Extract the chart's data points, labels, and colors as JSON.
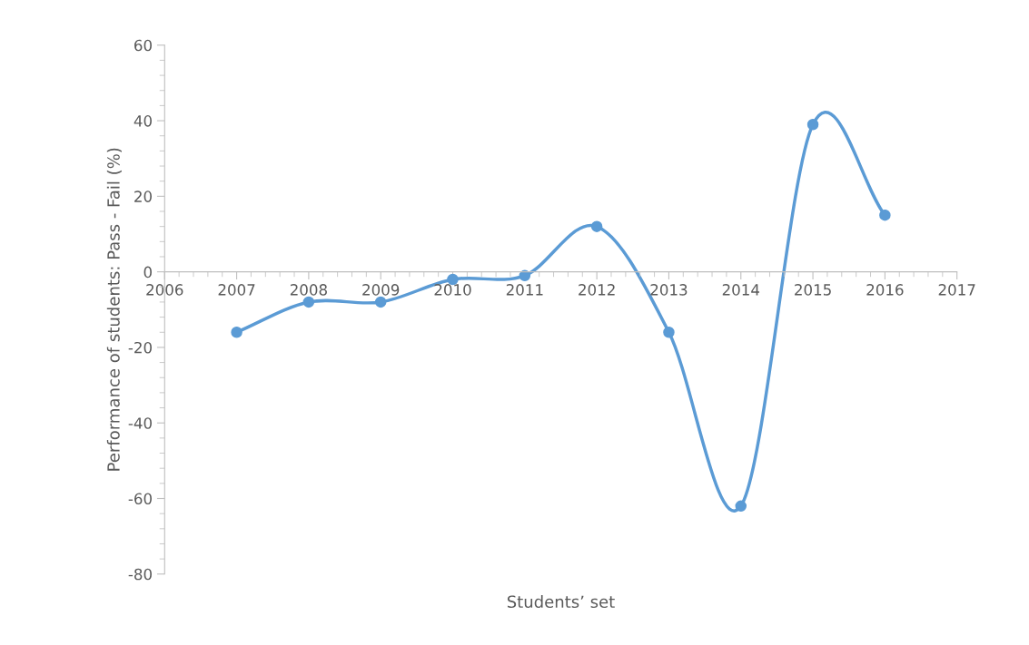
{
  "chart_data": {
    "type": "line",
    "xlabel": "Students’ set",
    "ylabel": "Performance of students: Pass - Fail (%)",
    "x": [
      2007,
      2008,
      2009,
      2010,
      2011,
      2012,
      2013,
      2014,
      2015,
      2016
    ],
    "series": [
      {
        "color": "#5b9bd5",
        "values": [
          -16,
          -8,
          -8,
          -2,
          -1,
          12,
          -16,
          -62,
          39,
          15
        ]
      }
    ],
    "xlim": [
      2006,
      2017
    ],
    "xticks": [
      2006,
      2007,
      2008,
      2009,
      2010,
      2011,
      2012,
      2013,
      2014,
      2015,
      2016,
      2017
    ],
    "ylim": [
      -80,
      60
    ],
    "yticks": [
      -80,
      -60,
      -40,
      -20,
      0,
      20,
      40,
      60
    ],
    "marker": "circle",
    "line_style": "solid",
    "grid": false,
    "legend": false
  }
}
